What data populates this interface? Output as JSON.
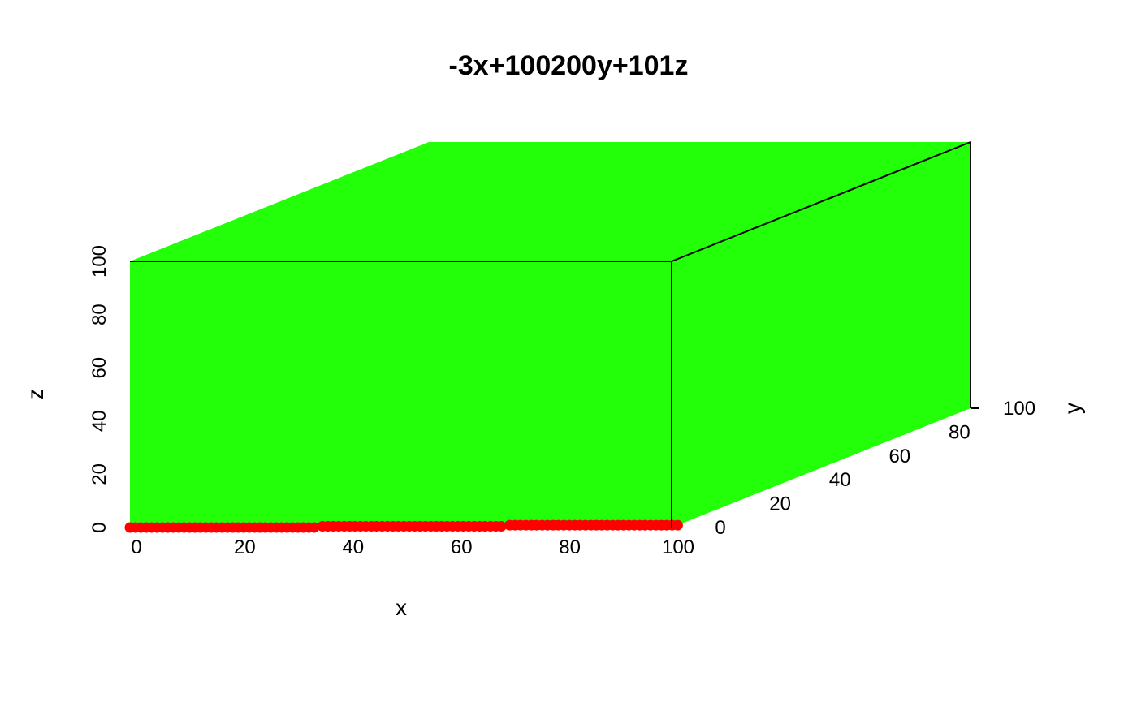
{
  "chart_data": {
    "type": "scatter",
    "title": "-3x+100200y+101z",
    "xlabel": "x",
    "ylabel": "y",
    "zlabel": "z",
    "xlim": [
      0,
      100
    ],
    "ylim": [
      0,
      100
    ],
    "zlim": [
      0,
      100
    ],
    "x_ticks": [
      "0",
      "20",
      "40",
      "60",
      "80",
      "100"
    ],
    "y_ticks": [
      "0",
      "20",
      "40",
      "60",
      "80",
      "100"
    ],
    "z_ticks": [
      "0",
      "20",
      "40",
      "60",
      "80",
      "100"
    ],
    "plane_color": "#22ff08",
    "point_color": "#ff0000",
    "points": {
      "x_from": 0,
      "x_to": 100,
      "x_step": 1,
      "z": 0,
      "y_segments": [
        {
          "x_from": 0,
          "x_to": 34,
          "y": 0
        },
        {
          "x_from": 35,
          "x_to": 68,
          "y": 1
        },
        {
          "x_from": 69,
          "x_to": 100,
          "y": 2
        }
      ]
    },
    "grid": false,
    "legend": "none"
  }
}
